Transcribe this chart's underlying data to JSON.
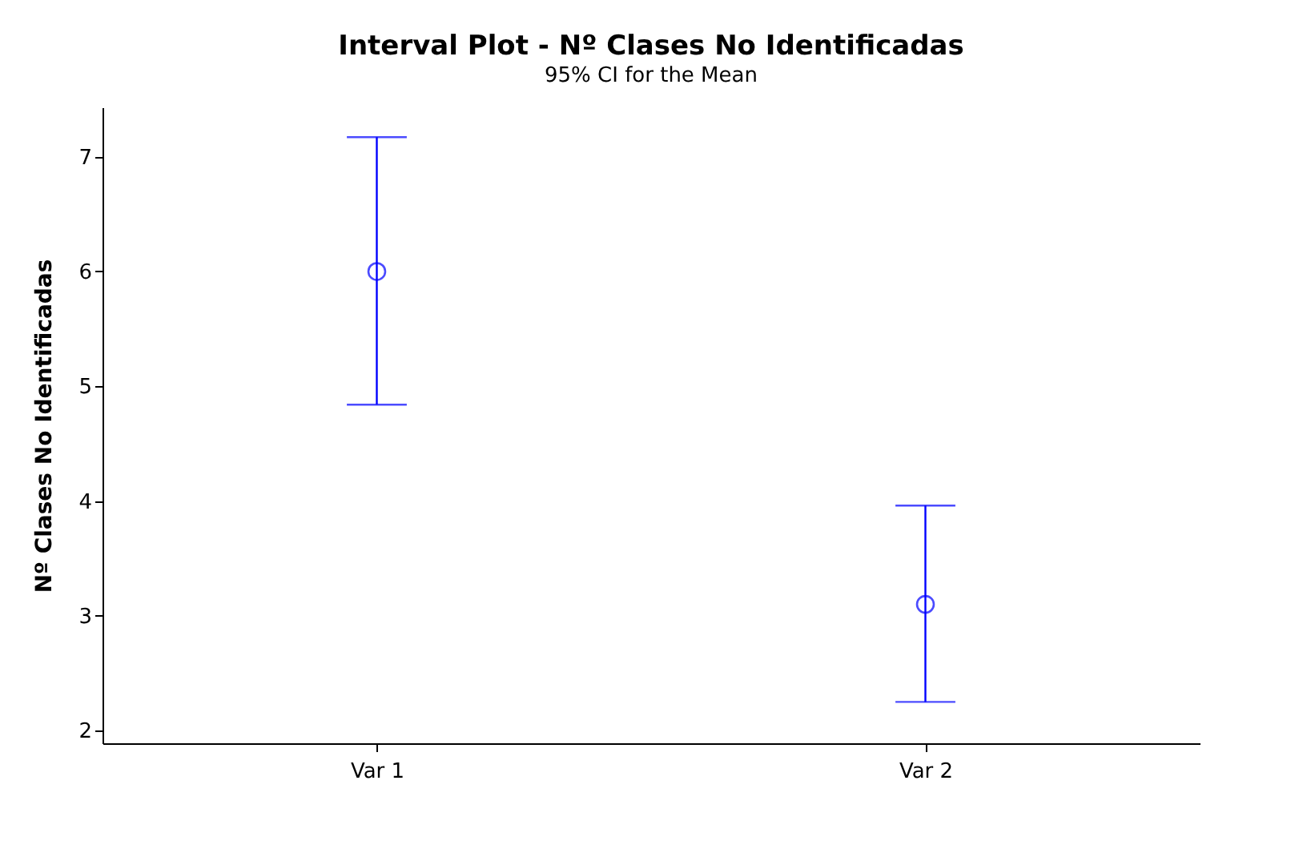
{
  "chart_data": {
    "type": "scatter",
    "title": "Interval Plot - Nº Clases No Identificadas",
    "subtitle": "95% CI for the Mean",
    "ylabel": "Nº Clases No Identificadas",
    "categories": [
      "Var 1",
      "Var 2"
    ],
    "values": [
      6.0,
      3.1
    ],
    "errors": [
      [
        4.84,
        7.17
      ],
      [
        2.25,
        3.96
      ]
    ],
    "color": "#0000ff",
    "marker": "circle",
    "ylim": [
      1.89,
      7.43
    ],
    "yticks": [
      2,
      3,
      4,
      5,
      6,
      7
    ],
    "grid": false
  }
}
